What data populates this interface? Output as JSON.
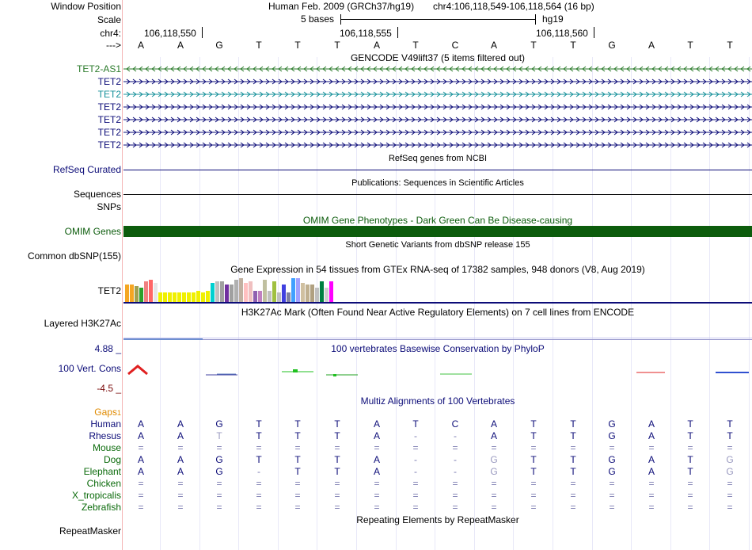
{
  "labels": {
    "window_position": "Window Position",
    "scale": "Scale",
    "chr": "chr4:",
    "arrow": "--->",
    "gencode_tracks": [
      "TET2-AS1",
      "TET2",
      "TET2",
      "TET2",
      "TET2",
      "TET2",
      "TET2"
    ],
    "refseq": "RefSeq Curated",
    "sequences": "Sequences",
    "snps": "SNPs",
    "omim": "OMIM Genes",
    "dbsnp": "Common dbSNP(155)",
    "gtex": "TET2",
    "h3k27ac": "Layered H3K27Ac",
    "cons_top": "4.88 _",
    "cons": "100 Vert. Cons",
    "cons_bottom": "-4.5 _",
    "gaps": "Gaps",
    "gaps_sup": "1",
    "species": [
      "Human",
      "Rhesus",
      "Mouse",
      "Dog",
      "Elephant",
      "Chicken",
      "X_tropicalis",
      "Zebrafish"
    ],
    "repeatmasker": "RepeatMasker"
  },
  "header": {
    "assembly": "Human Feb. 2009 (GRCh37/hg19)",
    "position": "chr4:106,118,549-106,118,564 (16 bp)",
    "scale_text": "5 bases",
    "scale_db": "hg19",
    "ticks": [
      "106,118,550",
      "106,118,555",
      "106,118,560"
    ]
  },
  "bases": [
    "A",
    "A",
    "G",
    "T",
    "T",
    "T",
    "A",
    "T",
    "C",
    "A",
    "T",
    "T",
    "G",
    "A",
    "T",
    "T"
  ],
  "titles": {
    "gencode": "GENCODE V49lift37 (5 items filtered out)",
    "refseq": "RefSeq genes from NCBI",
    "pubs": "Publications: Sequences in Scientific Articles",
    "omim": "OMIM Gene Phenotypes - Dark Green Can Be Disease-causing",
    "dbsnp": "Short Genetic Variants from dbSNP release 155",
    "gtex": "Gene Expression in 54 tissues from GTEx RNA-seq of 17382 samples, 948 donors (V8, Aug 2019)",
    "h3k27ac": "H3K27Ac Mark (Often Found Near Active Regulatory Elements) on 7 cell lines from ENCODE",
    "phylop": "100 vertebrates Basewise Conservation by PhyloP",
    "multiz": "Multiz Alignments of 100 Vertebrates",
    "repeat": "Repeating Elements by RepeatMasker"
  },
  "alignment": {
    "Human": [
      "A",
      "A",
      "G",
      "T",
      "T",
      "T",
      "A",
      "T",
      "C",
      "A",
      "T",
      "T",
      "G",
      "A",
      "T",
      "T"
    ],
    "Rhesus": [
      "A",
      "A",
      "T",
      "T",
      "T",
      "T",
      "A",
      "-",
      "-",
      "A",
      "T",
      "T",
      "G",
      "A",
      "T",
      "T"
    ],
    "Mouse": [
      "=",
      "=",
      "=",
      "=",
      "=",
      "=",
      "=",
      "=",
      "=",
      "=",
      "=",
      "=",
      "=",
      "=",
      "=",
      "="
    ],
    "Dog": [
      "A",
      "A",
      "G",
      "T",
      "T",
      "T",
      "A",
      "-",
      "-",
      "G",
      "T",
      "T",
      "G",
      "A",
      "T",
      "G"
    ],
    "Elephant": [
      "A",
      "A",
      "G",
      "-",
      "T",
      "T",
      "A",
      "-",
      "-",
      "G",
      "T",
      "T",
      "G",
      "A",
      "T",
      "G"
    ],
    "Chicken": [
      "=",
      "=",
      "=",
      "=",
      "=",
      "=",
      "=",
      "=",
      "=",
      "=",
      "=",
      "=",
      "=",
      "=",
      "=",
      "="
    ],
    "X_tropicalis": [
      "=",
      "=",
      "=",
      "=",
      "=",
      "=",
      "=",
      "=",
      "=",
      "=",
      "=",
      "=",
      "=",
      "=",
      "=",
      "="
    ],
    "Zebrafish": [
      "=",
      "=",
      "=",
      "=",
      "=",
      "=",
      "=",
      "=",
      "=",
      "=",
      "=",
      "=",
      "=",
      "=",
      "=",
      "="
    ]
  },
  "colors": {
    "gencode_as1": "#2a7a2a",
    "gencode_tet2": "#0c0c78",
    "gencode_tet2_alt": "#15909a",
    "navy": "#0c0c78",
    "omim": "#0c5c0c",
    "gaps": "#e08a00",
    "species_green": "#0a6a0a",
    "cons_red": "#7a0a0a"
  },
  "gtex_colors": [
    "#f5a623",
    "#f5a623",
    "#a0a050",
    "#2aa02a",
    "#f08080",
    "#ff6666",
    "#e6e6e6",
    "#f0f000",
    "#f0f000",
    "#f0f000",
    "#f0f000",
    "#f0f000",
    "#f0f000",
    "#f0f000",
    "#f0f000",
    "#f0f000",
    "#f0f000",
    "#f0f000",
    "#00d0d0",
    "#c0c0c0",
    "#a0a0a0",
    "#7030a0",
    "#a0a0a0",
    "#b0b0b0",
    "#c0b0a0",
    "#ffc0c0",
    "#f0c0c0",
    "#9060b0",
    "#c080c0",
    "#c0c0a0",
    "#c0c0c0",
    "#a0c040",
    "#c0c0c0",
    "#4040e0",
    "#8080a0",
    "#40a0ff",
    "#a0a0ff",
    "#d0c0a0",
    "#c0b090",
    "#b0a080",
    "#c0c0c0",
    "#008040",
    "#d0d0d0",
    "#ff00ff"
  ],
  "gtex_heights": [
    22,
    22,
    20,
    18,
    26,
    28,
    24,
    12,
    12,
    12,
    12,
    12,
    12,
    12,
    12,
    14,
    12,
    14,
    24,
    26,
    26,
    22,
    22,
    28,
    30,
    24,
    26,
    14,
    14,
    28,
    14,
    26,
    12,
    22,
    12,
    30,
    30,
    24,
    22,
    22,
    18,
    26,
    18,
    26
  ]
}
